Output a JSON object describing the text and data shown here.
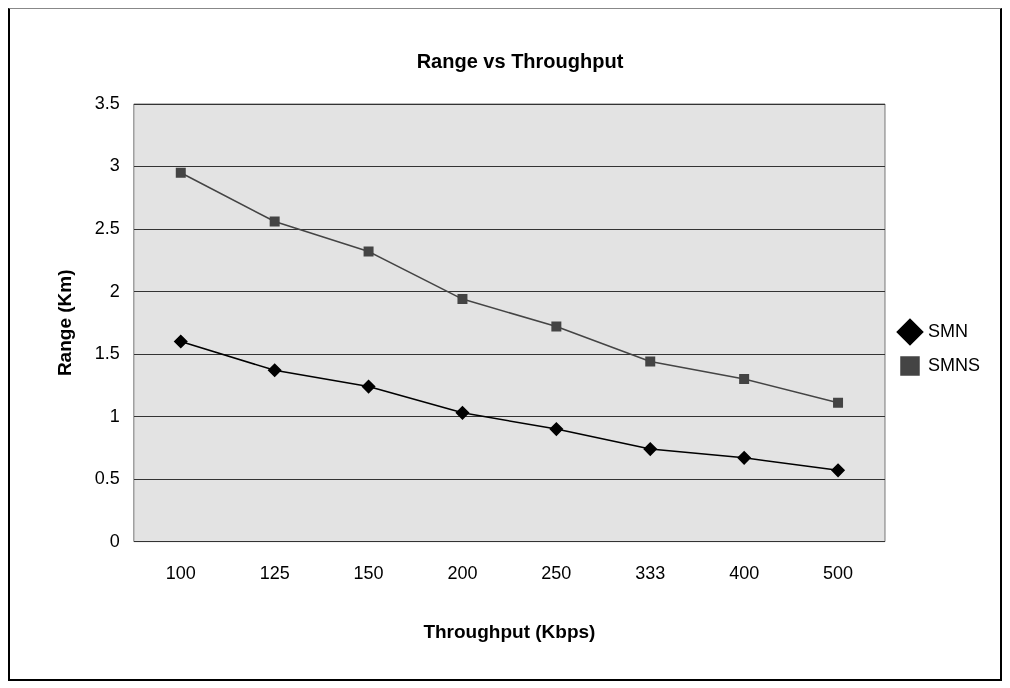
{
  "chart_data": {
    "type": "line",
    "title": "Range vs Throughput",
    "xlabel": "Throughput (Kbps)",
    "ylabel": "Range (Km)",
    "categories": [
      "100",
      "125",
      "150",
      "200",
      "250",
      "333",
      "400",
      "500"
    ],
    "series": [
      {
        "name": "SMN",
        "color": "#000000",
        "marker": "diamond",
        "values": [
          1.6,
          1.37,
          1.24,
          1.03,
          0.9,
          0.74,
          0.67,
          0.57
        ]
      },
      {
        "name": "SMNS",
        "color": "#444444",
        "marker": "square",
        "values": [
          2.95,
          2.56,
          2.32,
          1.94,
          1.72,
          1.44,
          1.3,
          1.11
        ]
      }
    ],
    "ylim": [
      0,
      3.5
    ],
    "yticks": [
      0,
      0.5,
      1,
      1.5,
      2,
      2.5,
      3,
      3.5
    ],
    "grid": "y",
    "legend": "right"
  }
}
